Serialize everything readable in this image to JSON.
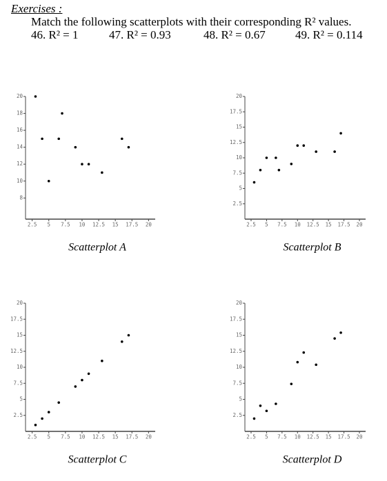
{
  "header": {
    "title": "Exercises :",
    "instruction": "Match the following scatterplots with their corresponding R² values.",
    "items": [
      "46. R² = 1",
      "47. R² = 0.93",
      "48. R² = 0.67",
      "49. R² = 0.114"
    ]
  },
  "chart_data": [
    {
      "type": "scatter",
      "title": "Scatterplot A",
      "x": [
        3,
        4,
        5,
        6.5,
        7,
        9,
        10,
        11,
        13,
        16,
        17
      ],
      "y": [
        20,
        15,
        10,
        15,
        18,
        14,
        12,
        12,
        11,
        15,
        14
      ],
      "xlim": [
        1.5,
        21
      ],
      "ylim": [
        5.5,
        20
      ],
      "xticks": [
        2.5,
        5,
        7.5,
        10,
        12.5,
        15,
        17.5,
        20
      ],
      "yticks": [
        8,
        10,
        12,
        14,
        16,
        18,
        20
      ]
    },
    {
      "type": "scatter",
      "title": "Scatterplot B",
      "x": [
        3,
        4,
        5,
        6.5,
        7,
        9,
        10,
        11,
        13,
        16,
        17
      ],
      "y": [
        6,
        8,
        10,
        10,
        8,
        9,
        12,
        12,
        11,
        11,
        14
      ],
      "xlim": [
        1.5,
        21
      ],
      "ylim": [
        0,
        20
      ],
      "xticks": [
        2.5,
        5,
        7.5,
        10,
        12.5,
        15,
        17.5,
        20
      ],
      "yticks": [
        2.5,
        5,
        7.5,
        10,
        12.5,
        15,
        17.5,
        20
      ]
    },
    {
      "type": "scatter",
      "title": "Scatterplot C",
      "x": [
        3,
        4,
        5,
        6.5,
        9,
        10,
        11,
        13,
        16,
        17
      ],
      "y": [
        1,
        2,
        3,
        4.5,
        7,
        8,
        9,
        11,
        14,
        15
      ],
      "xlim": [
        1.5,
        21
      ],
      "ylim": [
        0,
        20
      ],
      "xticks": [
        2.5,
        5,
        7.5,
        10,
        12.5,
        15,
        17.5,
        20
      ],
      "yticks": [
        2.5,
        5,
        7.5,
        10,
        12.5,
        15,
        17.5,
        20
      ]
    },
    {
      "type": "scatter",
      "title": "Scatterplot D",
      "x": [
        3,
        4,
        5,
        6.5,
        9,
        10,
        11,
        13,
        16,
        17
      ],
      "y": [
        2,
        4,
        3.2,
        4.3,
        7.4,
        10.8,
        12.3,
        10.4,
        14.5,
        15.4
      ],
      "xlim": [
        1.5,
        21
      ],
      "ylim": [
        0,
        20
      ],
      "xticks": [
        2.5,
        5,
        7.5,
        10,
        12.5,
        15,
        17.5,
        20
      ],
      "yticks": [
        2.5,
        5,
        7.5,
        10,
        12.5,
        15,
        17.5,
        20
      ]
    }
  ]
}
